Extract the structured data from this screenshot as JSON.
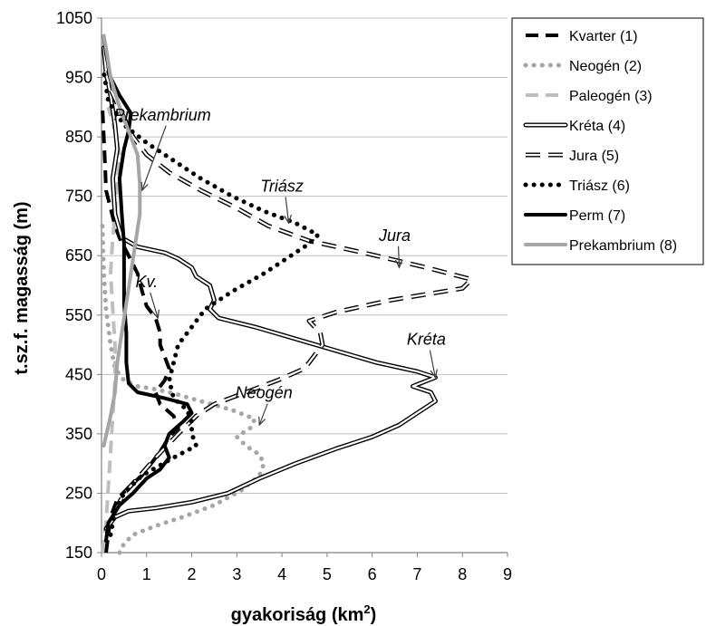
{
  "chart_data": {
    "type": "line",
    "title": "",
    "xlabel": "gyakoriság (km",
    "xlabel_sup": "2",
    "xlabel_end": ")",
    "ylabel": "t.sz.f. magasság (m)",
    "xlim": [
      0,
      9
    ],
    "ylim": [
      150,
      1050
    ],
    "xticks": [
      "0",
      "1",
      "2",
      "3",
      "4",
      "5",
      "6",
      "7",
      "8",
      "9"
    ],
    "yticks": [
      "150",
      "250",
      "350",
      "450",
      "550",
      "650",
      "750",
      "850",
      "950",
      "1050"
    ],
    "grid": "horizontal",
    "legend_position": "top-right",
    "series": [
      {
        "name": "Kvarter (1)",
        "color": "#000000",
        "style": "dashed-thick",
        "points": [
          [
            0.1,
            150
          ],
          [
            0.15,
            180
          ],
          [
            0.2,
            210
          ],
          [
            0.35,
            240
          ],
          [
            0.6,
            260
          ],
          [
            0.9,
            280
          ],
          [
            1.1,
            300
          ],
          [
            1.3,
            320
          ],
          [
            1.5,
            345
          ],
          [
            1.7,
            360
          ],
          [
            1.6,
            380
          ],
          [
            1.3,
            400
          ],
          [
            1.2,
            420
          ],
          [
            1.4,
            440
          ],
          [
            1.5,
            460
          ],
          [
            1.4,
            480
          ],
          [
            1.3,
            500
          ],
          [
            1.3,
            520
          ],
          [
            1.2,
            545
          ],
          [
            1.0,
            565
          ],
          [
            0.9,
            590
          ],
          [
            0.8,
            620
          ],
          [
            0.6,
            650
          ],
          [
            0.4,
            680
          ],
          [
            0.3,
            700
          ],
          [
            0.2,
            730
          ],
          [
            0.1,
            760
          ],
          [
            0.08,
            800
          ],
          [
            0.05,
            850
          ],
          [
            0.02,
            900
          ]
        ]
      },
      {
        "name": "Neogén (2)",
        "color": "#a6a6a6",
        "style": "dotted-thick",
        "points": [
          [
            0.4,
            150
          ],
          [
            0.5,
            165
          ],
          [
            0.7,
            180
          ],
          [
            1.2,
            195
          ],
          [
            1.8,
            210
          ],
          [
            2.5,
            230
          ],
          [
            3.1,
            255
          ],
          [
            3.5,
            280
          ],
          [
            3.6,
            300
          ],
          [
            3.5,
            315
          ],
          [
            3.2,
            330
          ],
          [
            3.0,
            345
          ],
          [
            3.3,
            360
          ],
          [
            3.4,
            375
          ],
          [
            2.9,
            390
          ],
          [
            2.2,
            405
          ],
          [
            1.6,
            418
          ],
          [
            1.2,
            425
          ],
          [
            0.8,
            430
          ],
          [
            0.5,
            440
          ],
          [
            0.3,
            460
          ],
          [
            0.2,
            500
          ],
          [
            0.1,
            560
          ],
          [
            0.05,
            620
          ],
          [
            0.02,
            700
          ]
        ]
      },
      {
        "name": "Paleogén (3)",
        "color": "#bfbfbf",
        "style": "dashed-thick",
        "points": [
          [
            0.02,
            150
          ],
          [
            0.1,
            200
          ],
          [
            0.15,
            260
          ],
          [
            0.2,
            320
          ],
          [
            0.25,
            380
          ],
          [
            0.3,
            440
          ],
          [
            0.3,
            500
          ],
          [
            0.25,
            560
          ],
          [
            0.2,
            620
          ],
          [
            0.25,
            680
          ],
          [
            0.3,
            720
          ],
          [
            0.35,
            770
          ],
          [
            0.4,
            820
          ],
          [
            0.3,
            860
          ],
          [
            0.15,
            900
          ]
        ]
      },
      {
        "name": "Kréta (4)",
        "color": "#000000",
        "style": "double",
        "points": [
          [
            0.1,
            190
          ],
          [
            0.3,
            210
          ],
          [
            0.6,
            220
          ],
          [
            1.2,
            225
          ],
          [
            2.0,
            235
          ],
          [
            2.8,
            250
          ],
          [
            3.5,
            275
          ],
          [
            4.3,
            300
          ],
          [
            5.2,
            325
          ],
          [
            6.0,
            345
          ],
          [
            6.6,
            365
          ],
          [
            7.0,
            385
          ],
          [
            7.4,
            405
          ],
          [
            7.3,
            420
          ],
          [
            6.9,
            430
          ],
          [
            7.4,
            445
          ],
          [
            7.0,
            455
          ],
          [
            6.1,
            470
          ],
          [
            5.2,
            490
          ],
          [
            4.3,
            510
          ],
          [
            3.4,
            530
          ],
          [
            2.6,
            545
          ],
          [
            2.4,
            560
          ],
          [
            2.5,
            575
          ],
          [
            2.4,
            600
          ],
          [
            2.1,
            615
          ],
          [
            2.0,
            630
          ],
          [
            1.7,
            645
          ],
          [
            1.4,
            655
          ],
          [
            0.8,
            665
          ],
          [
            0.45,
            680
          ],
          [
            0.3,
            720
          ],
          [
            0.25,
            780
          ],
          [
            0.35,
            830
          ],
          [
            0.3,
            870
          ],
          [
            0.2,
            920
          ],
          [
            0.1,
            960
          ],
          [
            0.05,
            1000
          ]
        ]
      },
      {
        "name": "Jura (5)",
        "color": "#000000",
        "style": "dashed-double",
        "points": [
          [
            0.3,
            220
          ],
          [
            0.5,
            250
          ],
          [
            0.8,
            275
          ],
          [
            1.2,
            310
          ],
          [
            1.7,
            350
          ],
          [
            2.1,
            380
          ],
          [
            2.5,
            400
          ],
          [
            3.2,
            420
          ],
          [
            3.9,
            440
          ],
          [
            4.5,
            460
          ],
          [
            4.7,
            480
          ],
          [
            4.9,
            500
          ],
          [
            4.85,
            520
          ],
          [
            4.6,
            540
          ],
          [
            5.2,
            555
          ],
          [
            6.4,
            575
          ],
          [
            8.0,
            595
          ],
          [
            8.2,
            610
          ],
          [
            7.2,
            630
          ],
          [
            5.8,
            655
          ],
          [
            4.6,
            675
          ],
          [
            3.7,
            700
          ],
          [
            3.0,
            730
          ],
          [
            2.2,
            760
          ],
          [
            1.5,
            790
          ],
          [
            1.0,
            820
          ],
          [
            0.7,
            850
          ],
          [
            0.45,
            890
          ],
          [
            0.2,
            930
          ],
          [
            0.08,
            960
          ]
        ]
      },
      {
        "name": "Triász (6)",
        "color": "#000000",
        "style": "dotted-thick",
        "points": [
          [
            0.2,
            180
          ],
          [
            0.3,
            220
          ],
          [
            0.5,
            250
          ],
          [
            0.9,
            280
          ],
          [
            1.6,
            310
          ],
          [
            2.1,
            330
          ],
          [
            2.0,
            350
          ],
          [
            2.0,
            370
          ],
          [
            1.9,
            390
          ],
          [
            1.6,
            410
          ],
          [
            1.5,
            440
          ],
          [
            1.6,
            470
          ],
          [
            1.7,
            500
          ],
          [
            2.0,
            530
          ],
          [
            2.3,
            560
          ],
          [
            2.9,
            590
          ],
          [
            3.6,
            620
          ],
          [
            4.2,
            650
          ],
          [
            4.6,
            670
          ],
          [
            4.8,
            685
          ],
          [
            4.3,
            705
          ],
          [
            3.6,
            725
          ],
          [
            2.9,
            750
          ],
          [
            2.2,
            780
          ],
          [
            1.6,
            810
          ],
          [
            1.0,
            840
          ],
          [
            0.5,
            870
          ],
          [
            0.15,
            910
          ],
          [
            0.05,
            960
          ]
        ]
      },
      {
        "name": "Perm (7)",
        "color": "#000000",
        "style": "solid-thick",
        "points": [
          [
            0.1,
            170
          ],
          [
            0.15,
            200
          ],
          [
            0.4,
            230
          ],
          [
            0.7,
            250
          ],
          [
            1.0,
            275
          ],
          [
            1.3,
            290
          ],
          [
            1.5,
            310
          ],
          [
            1.4,
            330
          ],
          [
            1.5,
            350
          ],
          [
            1.8,
            370
          ],
          [
            2.0,
            385
          ],
          [
            1.9,
            400
          ],
          [
            1.4,
            410
          ],
          [
            0.8,
            420
          ],
          [
            0.6,
            435
          ],
          [
            0.55,
            470
          ],
          [
            0.55,
            520
          ],
          [
            0.5,
            570
          ],
          [
            0.5,
            620
          ],
          [
            0.5,
            670
          ],
          [
            0.45,
            720
          ],
          [
            0.4,
            780
          ],
          [
            0.5,
            830
          ],
          [
            0.6,
            860
          ],
          [
            0.65,
            890
          ],
          [
            0.4,
            920
          ],
          [
            0.2,
            950
          ],
          [
            0.1,
            990
          ],
          [
            0.05,
            1020
          ]
        ]
      },
      {
        "name": "Prekambrium (8)",
        "color": "#a6a6a6",
        "style": "solid-thick",
        "points": [
          [
            0.05,
            330
          ],
          [
            0.2,
            380
          ],
          [
            0.3,
            420
          ],
          [
            0.35,
            470
          ],
          [
            0.45,
            520
          ],
          [
            0.55,
            570
          ],
          [
            0.65,
            620
          ],
          [
            0.75,
            670
          ],
          [
            0.85,
            720
          ],
          [
            0.85,
            770
          ],
          [
            0.8,
            820
          ],
          [
            0.6,
            860
          ],
          [
            0.4,
            900
          ],
          [
            0.2,
            950
          ],
          [
            0.1,
            1000
          ],
          [
            0.05,
            1020
          ]
        ]
      }
    ],
    "annotations": [
      {
        "text": "Prekambrium",
        "x": 1.35,
        "y": 878,
        "tx": 0.9,
        "ty": 760
      },
      {
        "text": "Triász",
        "x": 4.0,
        "y": 758,
        "tx": 4.15,
        "ty": 705
      },
      {
        "text": "Jura",
        "x": 6.5,
        "y": 675,
        "tx": 6.6,
        "ty": 630
      },
      {
        "text": "Kv.",
        "x": 1.0,
        "y": 597,
        "tx": 1.25,
        "ty": 545
      },
      {
        "text": "Kréta",
        "x": 7.2,
        "y": 500,
        "tx": 7.4,
        "ty": 445
      },
      {
        "text": "Neogén",
        "x": 3.6,
        "y": 410,
        "tx": 3.5,
        "ty": 365
      }
    ]
  }
}
